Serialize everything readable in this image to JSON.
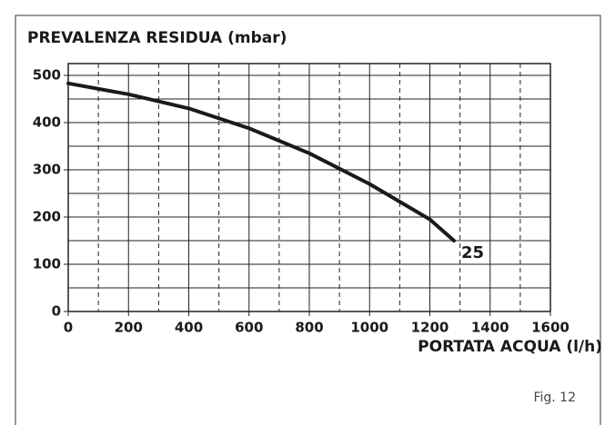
{
  "chart_data": {
    "type": "line",
    "title": "PREVALENZA RESIDUA (mbar)",
    "x_label": "PORTATA ACQUA (l/h)",
    "annotation": "Fig. 12",
    "x": [
      0,
      200,
      400,
      600,
      800,
      1000,
      1200,
      1280
    ],
    "series": [
      {
        "name": "25",
        "color": "#1a1a1a",
        "values": [
          483,
          460,
          430,
          388,
          335,
          270,
          195,
          150
        ]
      }
    ],
    "xlim": [
      0,
      1600
    ],
    "ylim": [
      0,
      525
    ],
    "xticks": [
      0,
      200,
      400,
      600,
      800,
      1000,
      1200,
      1400,
      1600
    ],
    "yticks": [
      0,
      100,
      200,
      300,
      400,
      500
    ],
    "x_minor_grid": [
      100,
      300,
      500,
      700,
      900,
      1100,
      1300,
      1500
    ],
    "y_minor_grid": [
      50,
      150,
      250,
      350,
      450
    ],
    "grid": true
  }
}
